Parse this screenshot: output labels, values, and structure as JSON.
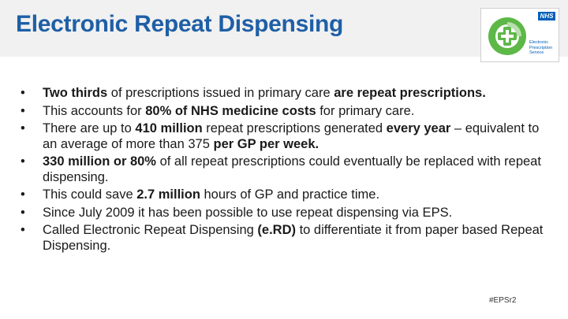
{
  "slide": {
    "title": "Electronic Repeat Dispensing",
    "hashtag": "#EPSr2"
  },
  "logo": {
    "badge": "NHS",
    "lines": [
      "Electronic",
      "Prescription",
      "Service"
    ],
    "colors": {
      "green": "#5db848",
      "blue": "#005eb8"
    }
  },
  "bullets": [
    [
      {
        "t": "Two thirds",
        "b": true
      },
      {
        "t": " of prescriptions issued in primary care ",
        "b": false
      },
      {
        "t": "are repeat prescriptions.",
        "b": true
      }
    ],
    [
      {
        "t": "This accounts for ",
        "b": false
      },
      {
        "t": "80% of NHS medicine costs",
        "b": true
      },
      {
        "t": " for primary care.",
        "b": false
      }
    ],
    [
      {
        "t": "There are up to ",
        "b": false
      },
      {
        "t": "410 million",
        "b": true
      },
      {
        "t": " repeat prescriptions generated ",
        "b": false
      },
      {
        "t": "every year",
        "b": true
      },
      {
        "t": " – equivalent to an average of more than 375 ",
        "b": false
      },
      {
        "t": "per GP per week.",
        "b": true
      }
    ],
    [
      {
        "t": "330 million or 80%",
        "b": true
      },
      {
        "t": " of all repeat prescriptions could eventually be replaced with repeat dispensing.",
        "b": false
      }
    ],
    [
      {
        "t": "This could save ",
        "b": false
      },
      {
        "t": "2.7 million",
        "b": true
      },
      {
        "t": " hours of GP and practice time.",
        "b": false
      }
    ],
    [
      {
        "t": "Since July 2009 it has been possible to use repeat dispensing via EPS.",
        "b": false
      }
    ],
    [
      {
        "t": "Called Electronic Repeat Dispensing ",
        "b": false
      },
      {
        "t": "(e.RD)",
        "b": true
      },
      {
        "t": " to differentiate it from paper based Repeat Dispensing.",
        "b": false
      }
    ]
  ],
  "colors": {
    "title": "#1f5fa6",
    "header_band": "#f1f1f1",
    "body_text": "#1a1a1a"
  }
}
